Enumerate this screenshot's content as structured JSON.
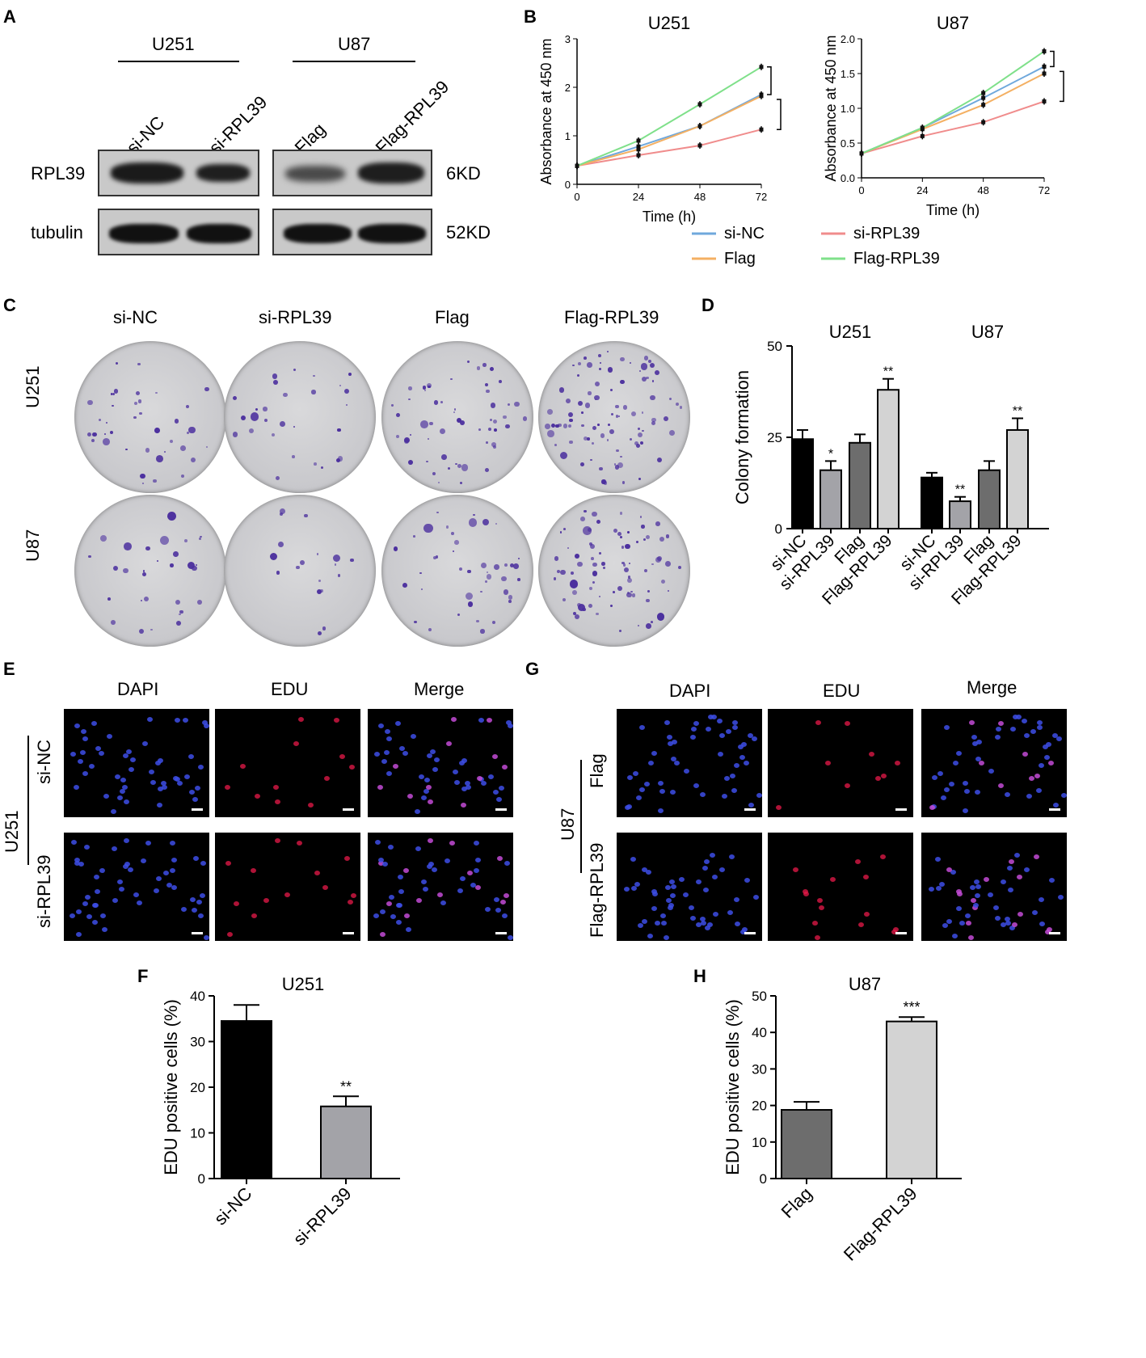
{
  "panels": {
    "A": "A",
    "B": "B",
    "C": "C",
    "D": "D",
    "E": "E",
    "F": "F",
    "G": "G",
    "H": "H"
  },
  "western": {
    "cell_u251": "U251",
    "cell_u87": "U87",
    "lanes": [
      "si-NC",
      "si-RPL39",
      "Flag",
      "Flag-RPL39"
    ],
    "row_rpl39": "RPL39",
    "row_tubulin": "tubulin",
    "size_rpl39": "6KD",
    "size_tubulin": "52KD"
  },
  "colony": {
    "columns": [
      "si-NC",
      "si-RPL39",
      "Flag",
      "Flag-RPL39"
    ],
    "rows": [
      "U251",
      "U87"
    ]
  },
  "edu": {
    "channels": [
      "DAPI",
      "EDU",
      "Merge"
    ],
    "colors": {
      "dapi": "#3d4de6",
      "edu": "#e8194a",
      "merge": "#000000"
    },
    "left_cell": "U251",
    "left_groups": [
      "si-NC",
      "si-RPL39"
    ],
    "right_cell": "U87",
    "right_groups": [
      "Flag",
      "Flag-RPL39"
    ]
  },
  "chart_data": [
    {
      "id": "B-U251",
      "type": "line",
      "title": "U251",
      "xlabel": "Time (h)",
      "ylabel": "Absorbance at 450 nm",
      "x": [
        0,
        24,
        48,
        72
      ],
      "xticks": [
        "0",
        "24",
        "48",
        "72"
      ],
      "yticks": [
        "0",
        "1",
        "2",
        "3"
      ],
      "ylim": [
        0,
        3
      ],
      "series": [
        {
          "name": "si-NC",
          "color": "#6fa8dc",
          "values": [
            0.38,
            0.78,
            1.2,
            1.85
          ]
        },
        {
          "name": "si-RPL39",
          "color": "#f08c8c",
          "values": [
            0.38,
            0.6,
            0.8,
            1.13
          ]
        },
        {
          "name": "Flag",
          "color": "#f4b063",
          "values": [
            0.38,
            0.72,
            1.2,
            1.82
          ]
        },
        {
          "name": "Flag-RPL39",
          "color": "#7fe08a",
          "values": [
            0.38,
            0.9,
            1.65,
            2.42
          ]
        }
      ]
    },
    {
      "id": "B-U87",
      "type": "line",
      "title": "U87",
      "xlabel": "Time (h)",
      "ylabel": "Absorbance at 450 nm",
      "x": [
        0,
        24,
        48,
        72
      ],
      "xticks": [
        "0",
        "24",
        "48",
        "72"
      ],
      "yticks": [
        "0.0",
        "0.5",
        "1.0",
        "1.5",
        "2.0"
      ],
      "ylim": [
        0,
        2.0
      ],
      "series": [
        {
          "name": "si-NC",
          "color": "#6fa8dc",
          "values": [
            0.35,
            0.72,
            1.15,
            1.6
          ]
        },
        {
          "name": "si-RPL39",
          "color": "#f08c8c",
          "values": [
            0.35,
            0.6,
            0.8,
            1.1
          ]
        },
        {
          "name": "Flag",
          "color": "#f4b063",
          "values": [
            0.35,
            0.7,
            1.05,
            1.5
          ]
        },
        {
          "name": "Flag-RPL39",
          "color": "#7fe08a",
          "values": [
            0.35,
            0.72,
            1.22,
            1.82
          ]
        }
      ]
    },
    {
      "id": "D",
      "type": "bar",
      "ylabel": "Colony formation",
      "group_titles": [
        "U251",
        "U87"
      ],
      "categories": [
        "si-NC",
        "si-RPL39",
        "Flag",
        "Flag-RPL39",
        "si-NC",
        "si-RPL39",
        "Flag",
        "Flag-RPL39"
      ],
      "values": [
        24.5,
        16,
        23.5,
        38,
        14,
        7.5,
        16,
        27
      ],
      "errors": [
        2.5,
        2.5,
        2.3,
        3,
        1.3,
        1.2,
        2.5,
        3.2
      ],
      "significance": [
        "",
        "*",
        "",
        "**",
        "",
        "**",
        "",
        "**"
      ],
      "colors": [
        "#000000",
        "#a3a3a8",
        "#6d6d6d",
        "#d3d3d3",
        "#000000",
        "#a3a3a8",
        "#6d6d6d",
        "#d3d3d3"
      ],
      "yticks": [
        "0",
        "25",
        "50"
      ],
      "ylim": [
        0,
        50
      ]
    },
    {
      "id": "F",
      "type": "bar",
      "title": "U251",
      "ylabel": "EDU positive cells (%)",
      "categories": [
        "si-NC",
        "si-RPL39"
      ],
      "values": [
        34.5,
        15.8
      ],
      "errors": [
        3.5,
        2.2
      ],
      "significance": [
        "",
        "**"
      ],
      "colors": [
        "#000000",
        "#a3a3a8"
      ],
      "yticks": [
        "0",
        "10",
        "20",
        "30",
        "40"
      ],
      "ylim": [
        0,
        40
      ]
    },
    {
      "id": "H",
      "type": "bar",
      "title": "U87",
      "ylabel": "EDU positive cells (%)",
      "categories": [
        "Flag",
        "Flag-RPL39"
      ],
      "values": [
        18.8,
        43
      ],
      "errors": [
        2.2,
        1.2
      ],
      "significance": [
        "",
        "***"
      ],
      "colors": [
        "#6d6d6d",
        "#d3d3d3"
      ],
      "yticks": [
        "0",
        "10",
        "20",
        "30",
        "40",
        "50"
      ],
      "ylim": [
        0,
        50
      ]
    }
  ]
}
